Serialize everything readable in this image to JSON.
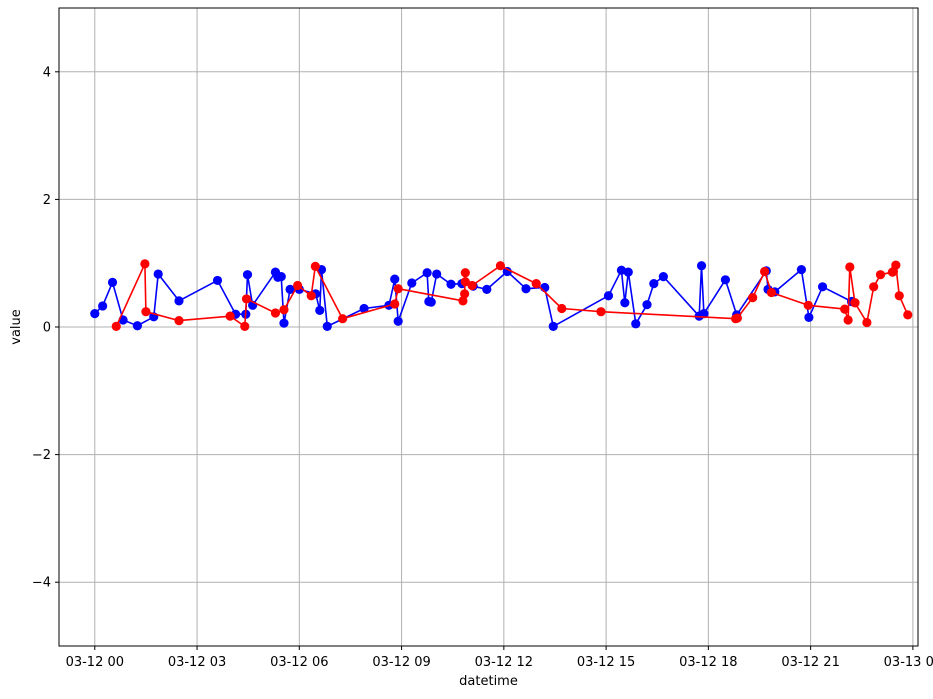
{
  "chart_data": {
    "type": "line",
    "xlabel": "datetime",
    "ylabel": "value",
    "xlim": [
      -1.05,
      24.15
    ],
    "ylim": [
      -5,
      5
    ],
    "grid": true,
    "x_unit": "hours since 03-12 00:00",
    "x_ticks": [
      {
        "value": 0,
        "label": "03-12 00"
      },
      {
        "value": 3,
        "label": "03-12 03"
      },
      {
        "value": 6,
        "label": "03-12 06"
      },
      {
        "value": 9,
        "label": "03-12 09"
      },
      {
        "value": 12,
        "label": "03-12 12"
      },
      {
        "value": 15,
        "label": "03-12 15"
      },
      {
        "value": 18,
        "label": "03-12 18"
      },
      {
        "value": 21,
        "label": "03-12 21"
      },
      {
        "value": 24,
        "label": "03-13 00"
      }
    ],
    "y_ticks": [
      {
        "value": -4,
        "label": "−4"
      },
      {
        "value": -2,
        "label": "−2"
      },
      {
        "value": 0,
        "label": "0"
      },
      {
        "value": 2,
        "label": "2"
      },
      {
        "value": 4,
        "label": "4"
      }
    ],
    "series": [
      {
        "color": "#0000ff",
        "x": [
          0.0,
          0.23,
          0.52,
          0.83,
          1.25,
          1.73,
          1.86,
          2.47,
          3.6,
          4.13,
          4.43,
          4.48,
          4.63,
          5.3,
          5.37,
          5.47,
          5.55,
          5.73,
          6.0,
          6.48,
          6.6,
          6.65,
          6.82,
          7.9,
          8.63,
          8.8,
          8.9,
          9.3,
          9.75,
          9.8,
          9.87,
          10.03,
          10.45,
          10.77,
          11.1,
          11.5,
          12.1,
          12.65,
          13.2,
          13.45,
          15.07,
          15.45,
          15.55,
          15.65,
          15.87,
          16.2,
          16.4,
          16.68,
          17.73,
          17.8,
          17.87,
          18.5,
          18.83,
          19.7,
          19.75,
          19.95,
          20.73,
          20.95,
          21.35,
          22.2
        ],
        "y": [
          0.21,
          0.33,
          0.7,
          0.11,
          0.02,
          0.16,
          0.83,
          0.41,
          0.73,
          0.2,
          0.2,
          0.82,
          0.34,
          0.86,
          0.78,
          0.79,
          0.06,
          0.59,
          0.59,
          0.52,
          0.26,
          0.9,
          0.01,
          0.29,
          0.34,
          0.75,
          0.09,
          0.69,
          0.85,
          0.4,
          0.39,
          0.83,
          0.67,
          0.68,
          0.64,
          0.59,
          0.87,
          0.6,
          0.62,
          0.01,
          0.49,
          0.89,
          0.38,
          0.86,
          0.05,
          0.35,
          0.68,
          0.79,
          0.17,
          0.96,
          0.21,
          0.74,
          0.19,
          0.88,
          0.59,
          0.55,
          0.9,
          0.15,
          0.63,
          0.4
        ]
      },
      {
        "color": "#ff0000",
        "x": [
          0.63,
          1.47,
          1.5,
          2.47,
          3.97,
          4.4,
          4.45,
          5.3,
          5.55,
          5.95,
          6.35,
          6.47,
          7.27,
          8.8,
          8.9,
          10.8,
          10.85,
          10.87,
          10.87,
          11.07,
          11.9,
          12.95,
          13.7,
          14.85,
          18.8,
          18.85,
          19.3,
          19.65,
          19.85,
          20.93,
          22.0,
          22.1,
          22.15,
          22.3,
          22.3,
          22.65,
          22.85,
          23.05,
          23.4,
          23.43,
          23.5,
          23.6,
          23.85
        ],
        "y": [
          0.01,
          0.99,
          0.24,
          0.1,
          0.17,
          0.01,
          0.44,
          0.22,
          0.27,
          0.65,
          0.49,
          0.95,
          0.13,
          0.36,
          0.6,
          0.41,
          0.52,
          0.85,
          0.71,
          0.65,
          0.96,
          0.68,
          0.29,
          0.24,
          0.13,
          0.14,
          0.46,
          0.87,
          0.54,
          0.34,
          0.28,
          0.11,
          0.94,
          0.38,
          0.38,
          0.07,
          0.63,
          0.82,
          0.86,
          0.87,
          0.97,
          0.49,
          0.19
        ]
      }
    ]
  }
}
